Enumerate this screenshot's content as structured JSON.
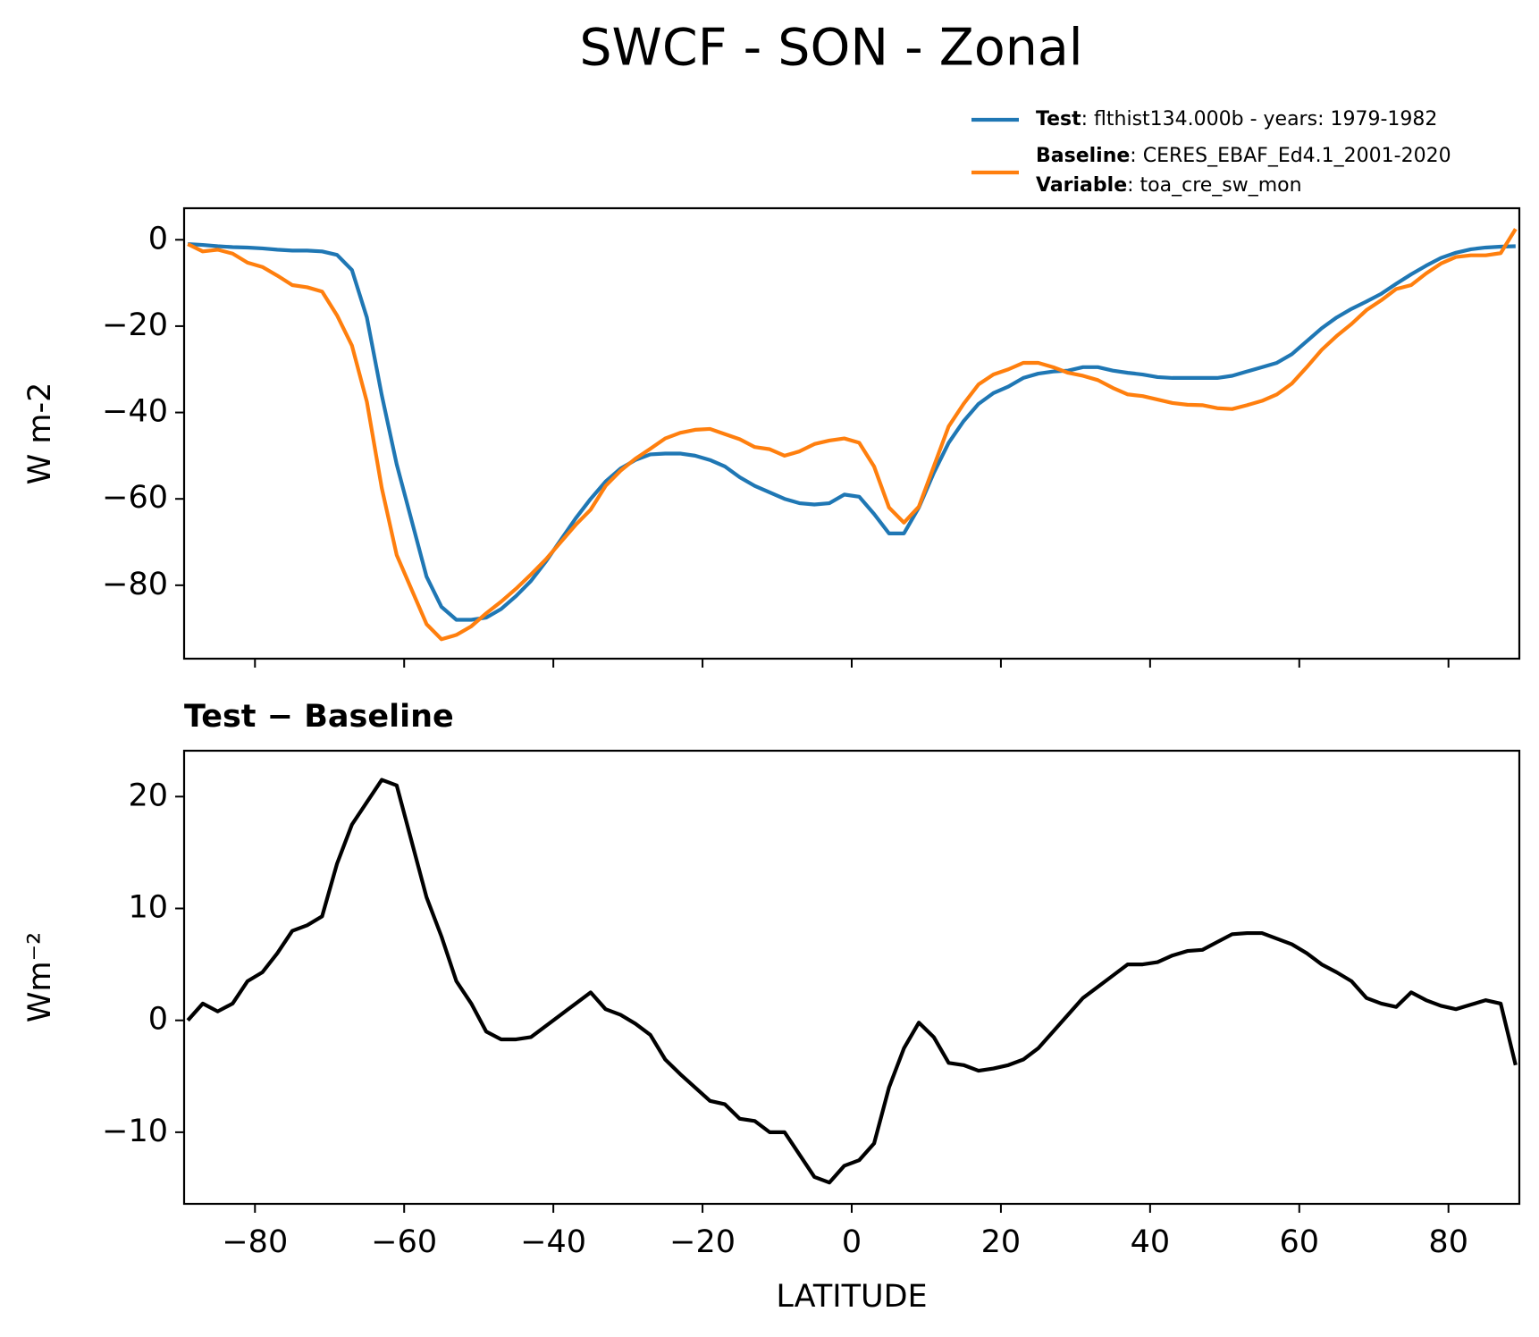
{
  "chart_data": [
    {
      "type": "line",
      "title": "SWCF - SON - Zonal",
      "ylabel": "W m-2",
      "x": [
        -89,
        -87,
        -85,
        -83,
        -81,
        -79,
        -77,
        -75,
        -73,
        -71,
        -69,
        -67,
        -65,
        -63,
        -61,
        -59,
        -57,
        -55,
        -53,
        -51,
        -49,
        -47,
        -45,
        -43,
        -41,
        -39,
        -37,
        -35,
        -33,
        -31,
        -29,
        -27,
        -25,
        -23,
        -21,
        -19,
        -17,
        -15,
        -13,
        -11,
        -9,
        -7,
        -5,
        -3,
        -1,
        1,
        3,
        5,
        7,
        9,
        11,
        13,
        15,
        17,
        19,
        21,
        23,
        25,
        27,
        29,
        31,
        33,
        35,
        37,
        39,
        41,
        43,
        45,
        47,
        49,
        51,
        53,
        55,
        57,
        59,
        61,
        63,
        65,
        67,
        69,
        71,
        73,
        75,
        77,
        79,
        81,
        83,
        85,
        87,
        89
      ],
      "series": [
        {
          "name": "Test",
          "label": ": flthist134.000b - years: 1979-1982",
          "color": "#1f77b4",
          "values": [
            -1,
            -1.2,
            -1.5,
            -1.7,
            -1.8,
            -2,
            -2.3,
            -2.5,
            -2.5,
            -2.7,
            -3.5,
            -7,
            -18,
            -36,
            -52,
            -65,
            -78,
            -85,
            -88,
            -88,
            -87.5,
            -85.5,
            -82.5,
            -79,
            -74.5,
            -69.5,
            -64.5,
            -60,
            -56,
            -53,
            -51,
            -49.7,
            -49.5,
            -49.5,
            -50,
            -51,
            -52.5,
            -55,
            -57,
            -58.5,
            -60,
            -61,
            -61.3,
            -61,
            -59,
            -59.5,
            -63.5,
            -68,
            -68,
            -62,
            -54,
            -47,
            -42,
            -38,
            -35.5,
            -34,
            -32,
            -31,
            -30.5,
            -30.3,
            -29.5,
            -29.5,
            -30.3,
            -30.8,
            -31.2,
            -31.8,
            -32,
            -32,
            -32,
            -32,
            -31.5,
            -30.5,
            -29.5,
            -28.5,
            -26.5,
            -23.5,
            -20.5,
            -18,
            -16,
            -14.3,
            -12.5,
            -10.2,
            -8,
            -6,
            -4.2,
            -3,
            -2.2,
            -1.8,
            -1.6,
            -1.5
          ]
        },
        {
          "name": "Baseline",
          "label": ": CERES_EBAF_Ed4.1_2001-2020",
          "color": "#ff7f0e",
          "values": [
            -1,
            -2.7,
            -2.3,
            -3.2,
            -5.3,
            -6.3,
            -8.3,
            -10.5,
            -11,
            -12,
            -17.5,
            -24.5,
            -37.5,
            -57.5,
            -73,
            -81,
            -89,
            -92.5,
            -91.5,
            -89.5,
            -86.5,
            -83.8,
            -80.8,
            -77.5,
            -74,
            -70,
            -66,
            -62.5,
            -57,
            -53.5,
            -50.7,
            -48.4,
            -46,
            -44.7,
            -44,
            -43.8,
            -45,
            -46.2,
            -48,
            -48.5,
            -50,
            -49,
            -47.3,
            -46.5,
            -46,
            -47,
            -52.5,
            -62,
            -65.5,
            -61.8,
            -52.5,
            -43.2,
            -38,
            -33.5,
            -31.2,
            -30,
            -28.5,
            -28.5,
            -29.5,
            -30.8,
            -31.5,
            -32.5,
            -34.3,
            -35.8,
            -36.2,
            -37,
            -37.8,
            -38.2,
            -38.3,
            -39,
            -39.2,
            -38.3,
            -37.3,
            -35.8,
            -33.3,
            -29.5,
            -25.5,
            -22.3,
            -19.5,
            -16.3,
            -14,
            -11.4,
            -10.5,
            -7.8,
            -5.5,
            -4,
            -3.6,
            -3.6,
            -3.1,
            2.5
          ]
        }
      ],
      "legend_extra": {
        "name": "Variable",
        "label": ": toa_cre_sw_mon"
      },
      "xlim": [
        -89.5,
        89.5
      ],
      "ylim": [
        -97,
        7.3
      ],
      "xticks": [
        -80,
        -60,
        -40,
        -20,
        0,
        20,
        40,
        60,
        80
      ],
      "yticks": [
        0,
        {
          "value": -20,
          "label": "−20"
        },
        {
          "value": -40,
          "label": "−40"
        },
        {
          "value": -60,
          "label": "−60"
        },
        {
          "value": -80,
          "label": "−80"
        }
      ]
    },
    {
      "type": "line",
      "title": "Test − Baseline",
      "ylabel": "Wm⁻²",
      "xlabel": "LATITUDE",
      "x": [
        -89,
        -87,
        -85,
        -83,
        -81,
        -79,
        -77,
        -75,
        -73,
        -71,
        -69,
        -67,
        -65,
        -63,
        -61,
        -59,
        -57,
        -55,
        -53,
        -51,
        -49,
        -47,
        -45,
        -43,
        -41,
        -39,
        -37,
        -35,
        -33,
        -31,
        -29,
        -27,
        -25,
        -23,
        -21,
        -19,
        -17,
        -15,
        -13,
        -11,
        -9,
        -7,
        -5,
        -3,
        -1,
        1,
        3,
        5,
        7,
        9,
        11,
        13,
        15,
        17,
        19,
        21,
        23,
        25,
        27,
        29,
        31,
        33,
        35,
        37,
        39,
        41,
        43,
        45,
        47,
        49,
        51,
        53,
        55,
        57,
        59,
        61,
        63,
        65,
        67,
        69,
        71,
        73,
        75,
        77,
        79,
        81,
        83,
        85,
        87,
        89
      ],
      "series": [
        {
          "color": "#000000",
          "values": [
            0,
            1.5,
            0.8,
            1.5,
            3.5,
            4.3,
            6,
            8,
            8.5,
            9.3,
            14,
            17.5,
            19.5,
            21.5,
            21,
            16,
            11,
            7.5,
            3.5,
            1.5,
            -1,
            -1.7,
            -1.7,
            -1.5,
            -0.5,
            0.5,
            1.5,
            2.5,
            1,
            0.5,
            -0.3,
            -1.3,
            -3.5,
            -4.8,
            -6,
            -7.2,
            -7.5,
            -8.8,
            -9,
            -10,
            -10,
            -12,
            -14,
            -14.5,
            -13,
            -12.5,
            -11,
            -6,
            -2.5,
            -0.2,
            -1.5,
            -3.8,
            -4,
            -4.5,
            -4.3,
            -4,
            -3.5,
            -2.5,
            -1,
            0.5,
            2,
            3,
            4,
            5,
            5,
            5.2,
            5.8,
            6.2,
            6.3,
            7,
            7.7,
            7.8,
            7.8,
            7.3,
            6.8,
            6,
            5,
            4.3,
            3.5,
            2,
            1.5,
            1.2,
            2.5,
            1.8,
            1.3,
            1,
            1.4,
            1.8,
            1.5,
            -4
          ]
        }
      ],
      "xlim": [
        -89.5,
        89.5
      ],
      "ylim": [
        -16.4,
        24.1
      ],
      "xticks": [
        {
          "value": -80,
          "label": "−80"
        },
        {
          "value": -60,
          "label": "−60"
        },
        {
          "value": -40,
          "label": "−40"
        },
        {
          "value": -20,
          "label": "−20"
        },
        0,
        20,
        40,
        60,
        80
      ],
      "yticks": [
        {
          "value": -10,
          "label": "−10"
        },
        0,
        10,
        20
      ]
    }
  ]
}
